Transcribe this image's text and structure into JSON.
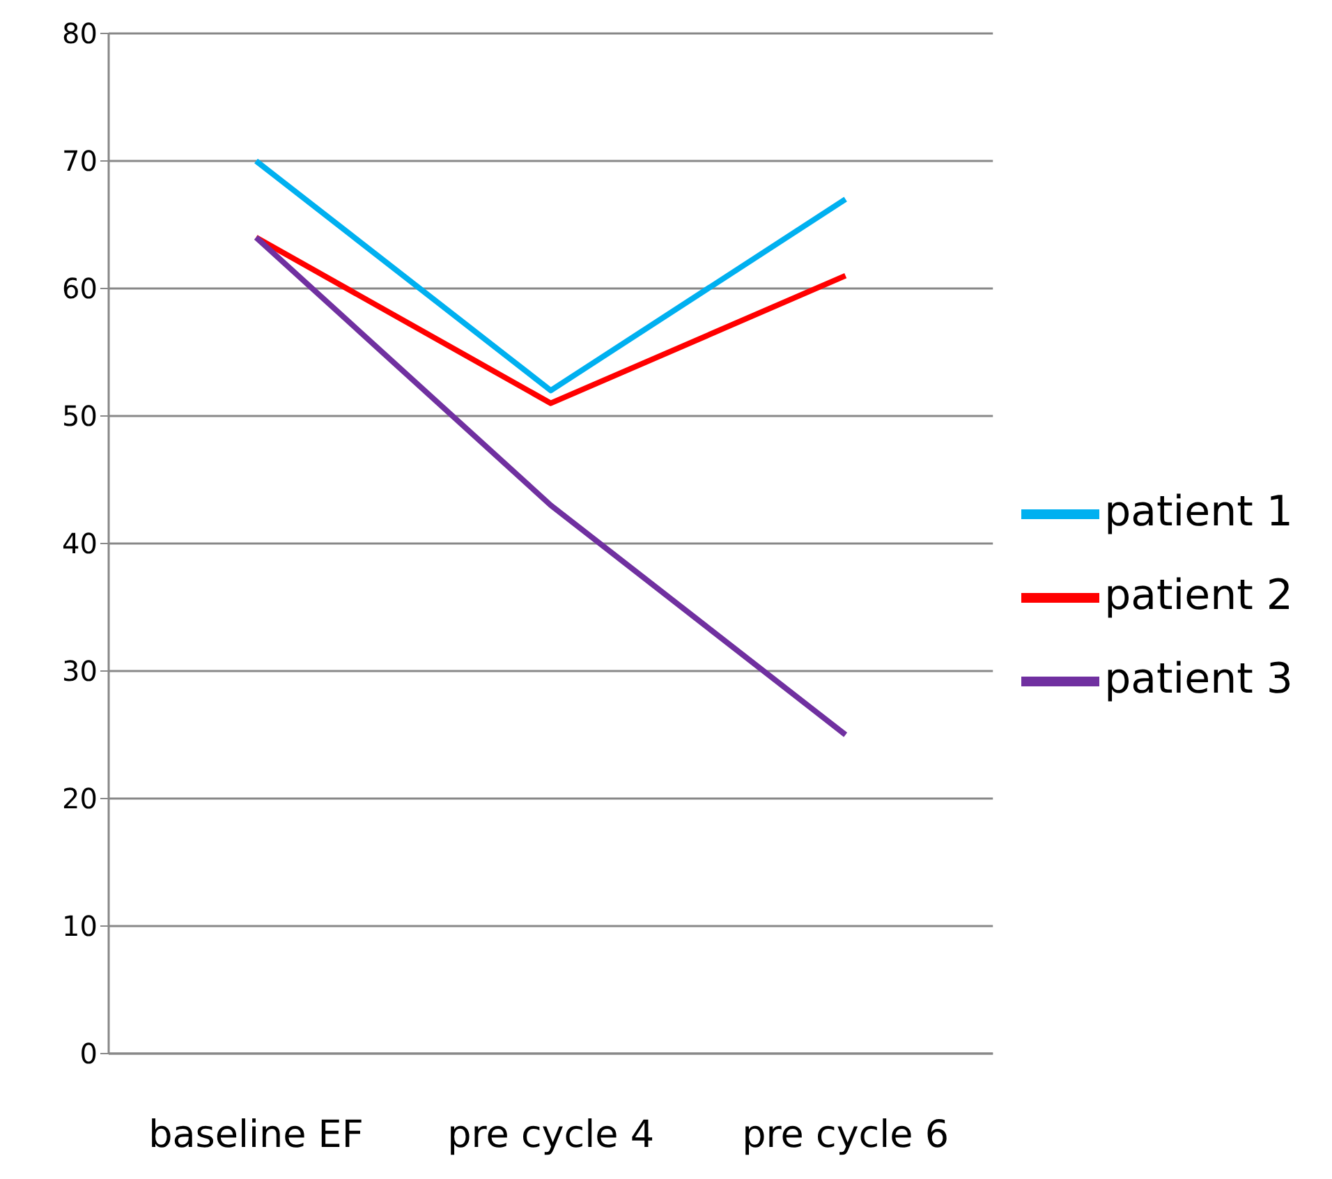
{
  "chart_data": {
    "type": "line",
    "categories": [
      "baseline EF",
      "pre cycle 4",
      "pre cycle 6"
    ],
    "series": [
      {
        "name": "patient 1",
        "color": "#00b0f0",
        "values": [
          70,
          52,
          67
        ]
      },
      {
        "name": "patient 2",
        "color": "#ff0000",
        "values": [
          64,
          51,
          61
        ]
      },
      {
        "name": "patient 3",
        "color": "#7030a0",
        "values": [
          64,
          43,
          25
        ]
      }
    ],
    "ylim": [
      0,
      80
    ],
    "yticks": [
      0,
      10,
      20,
      30,
      40,
      50,
      60,
      70,
      80
    ],
    "grid": "y",
    "legend": "right",
    "marker": "none",
    "line_style": "solid"
  }
}
